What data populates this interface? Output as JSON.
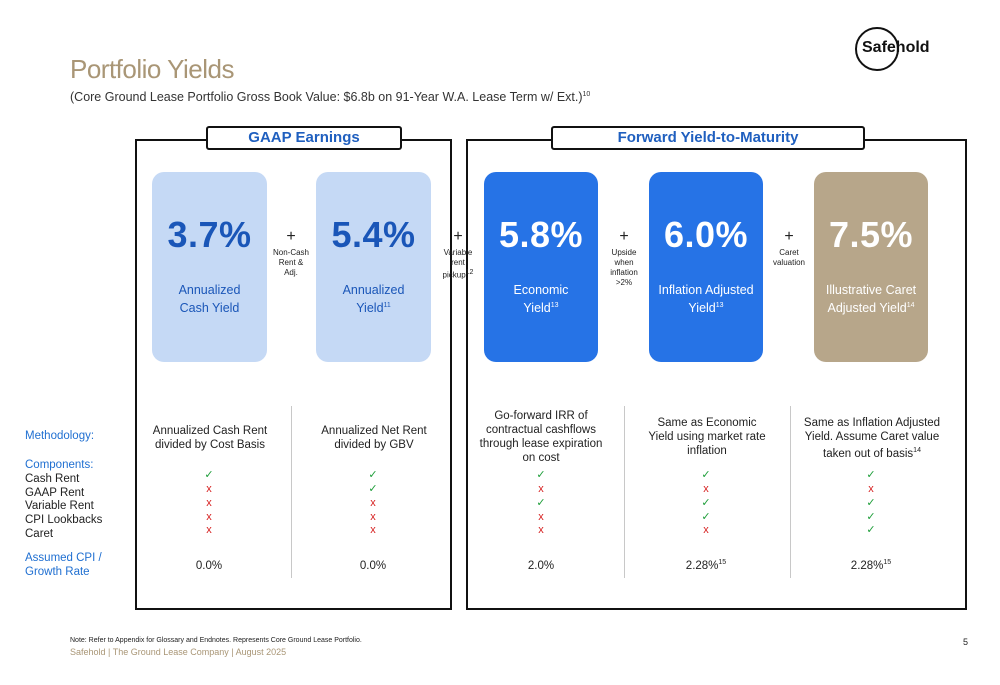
{
  "title": "Portfolio Yields",
  "subtitle": {
    "text": "(Core Ground Lease Portfolio Gross Book Value: $6.8b on 91-Year W.A. Lease Term w/ Ext.)",
    "sup": "10"
  },
  "logo": {
    "text": "Safehold"
  },
  "sections": {
    "gaap": "GAAP Earnings",
    "forward": "Forward Yield-to-Maturity"
  },
  "boxes": [
    {
      "value": "3.7%",
      "label_line1": "Annualized",
      "label_line2": "Cash Yield",
      "sup": ""
    },
    {
      "value": "5.4%",
      "label_line1": "Annualized",
      "label_line2": "Yield",
      "sup": "11"
    },
    {
      "value": "5.8%",
      "label_line1": "Economic",
      "label_line2": "Yield",
      "sup": "13"
    },
    {
      "value": "6.0%",
      "label_line1": "Inflation Adjusted",
      "label_line2": "Yield",
      "sup": "13"
    },
    {
      "value": "7.5%",
      "label_line1": "Illustrative Caret",
      "label_line2": "Adjusted Yield",
      "sup": "14"
    }
  ],
  "operators": [
    {
      "symbol": "+",
      "lines": [
        "Non-Cash",
        "Rent &",
        "Adj."
      ],
      "sup": ""
    },
    {
      "symbol": "+",
      "lines": [
        "Variable",
        "rent",
        "pickup"
      ],
      "sup": "12"
    },
    {
      "symbol": "+",
      "lines": [
        "Upside",
        "when",
        "inflation",
        ">2%"
      ],
      "sup": ""
    },
    {
      "symbol": "+",
      "lines": [
        "Caret",
        "valuation"
      ],
      "sup": ""
    }
  ],
  "row_labels": {
    "methodology": "Methodology:",
    "components": "Components:",
    "items": [
      "Cash Rent",
      "GAAP Rent",
      "Variable Rent",
      "CPI Lookbacks",
      "Caret"
    ],
    "cpi_line1": "Assumed CPI /",
    "cpi_line2": "Growth Rate"
  },
  "methodology": [
    {
      "lines": [
        "Annualized Cash Rent",
        "divided by Cost Basis"
      ],
      "sup": ""
    },
    {
      "lines": [
        "Annualized Net Rent",
        "divided by GBV"
      ],
      "sup": ""
    },
    {
      "lines": [
        "Go-forward IRR of",
        "contractual cashflows",
        "through lease expiration",
        "on cost"
      ],
      "sup": ""
    },
    {
      "lines": [
        "Same as Economic",
        "Yield using market rate",
        "inflation"
      ],
      "sup": ""
    },
    {
      "lines": [
        "Same as Inflation Adjusted",
        "Yield. Assume Caret value",
        "taken out of basis"
      ],
      "sup": "14"
    }
  ],
  "component_marks": [
    [
      "✓",
      "x",
      "x",
      "x",
      "x"
    ],
    [
      "✓",
      "✓",
      "x",
      "x",
      "x"
    ],
    [
      "✓",
      "x",
      "✓",
      "x",
      "x"
    ],
    [
      "✓",
      "x",
      "✓",
      "✓",
      "x"
    ],
    [
      "✓",
      "x",
      "✓",
      "✓",
      "✓"
    ]
  ],
  "cpi": [
    {
      "value": "0.0%",
      "sup": ""
    },
    {
      "value": "0.0%",
      "sup": ""
    },
    {
      "value": "2.0%",
      "sup": ""
    },
    {
      "value": "2.28%",
      "sup": "15"
    },
    {
      "value": "2.28%",
      "sup": "15"
    }
  ],
  "footnote": "Note: Refer to Appendix for Glossary and Endnotes. Represents Core Ground Lease Portfolio.",
  "footer": "Safehold | The Ground Lease Company | August 2025",
  "page_number": "5",
  "colors": {
    "title": "#a99676",
    "light_box": "#c5d9f5",
    "blue_box": "#2673e6",
    "tan_box": "#b7a68a",
    "accent_blue": "#1f5fbf",
    "check": "#1e9e3a",
    "cross": "#d62020"
  }
}
